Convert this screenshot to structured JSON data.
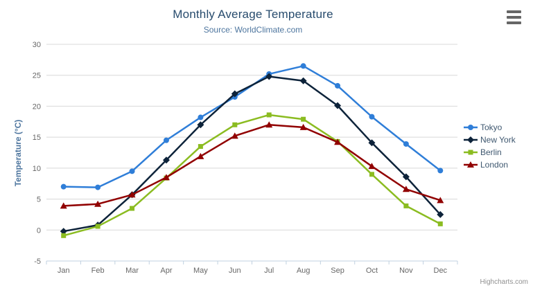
{
  "chart_data": {
    "type": "line",
    "title": "Monthly Average Temperature",
    "subtitle": "Source: WorldClimate.com",
    "xlabel": "",
    "ylabel": "Temperature (°C)",
    "ylim": [
      -5,
      30
    ],
    "ytick_step": 5,
    "grid": true,
    "legend_position": "right",
    "categories": [
      "Jan",
      "Feb",
      "Mar",
      "Apr",
      "May",
      "Jun",
      "Jul",
      "Aug",
      "Sep",
      "Oct",
      "Nov",
      "Dec"
    ],
    "series": [
      {
        "name": "Tokyo",
        "color": "#2f7ed8",
        "marker": "circle",
        "values": [
          7.0,
          6.9,
          9.5,
          14.5,
          18.2,
          21.5,
          25.2,
          26.5,
          23.3,
          18.3,
          13.9,
          9.6
        ]
      },
      {
        "name": "New York",
        "color": "#0d233a",
        "marker": "diamond",
        "values": [
          -0.2,
          0.8,
          5.7,
          11.3,
          17.0,
          22.0,
          24.8,
          24.1,
          20.1,
          14.1,
          8.6,
          2.5
        ]
      },
      {
        "name": "Berlin",
        "color": "#8bbc21",
        "marker": "square",
        "values": [
          -0.9,
          0.6,
          3.5,
          8.4,
          13.5,
          17.0,
          18.6,
          17.9,
          14.3,
          9.0,
          3.9,
          1.0
        ]
      },
      {
        "name": "London",
        "color": "#910000",
        "marker": "triangle",
        "values": [
          3.9,
          4.2,
          5.7,
          8.5,
          11.9,
          15.2,
          17.0,
          16.6,
          14.2,
          10.3,
          6.6,
          4.8
        ]
      }
    ]
  },
  "theme": {
    "title_color": "#274b6d",
    "subtitle_color": "#4d759e",
    "axis_title_color": "#4d759e",
    "axis_label_color": "#666666",
    "grid_color": "#d8d8d8",
    "axis_line_color": "#c0d0e0",
    "legend_text_color": "#3e576f",
    "credits_color": "#909090",
    "background": "#ffffff"
  },
  "toolbar": {
    "export_menu_icon": "hamburger-icon"
  },
  "credits": {
    "label": "Highcharts.com"
  }
}
